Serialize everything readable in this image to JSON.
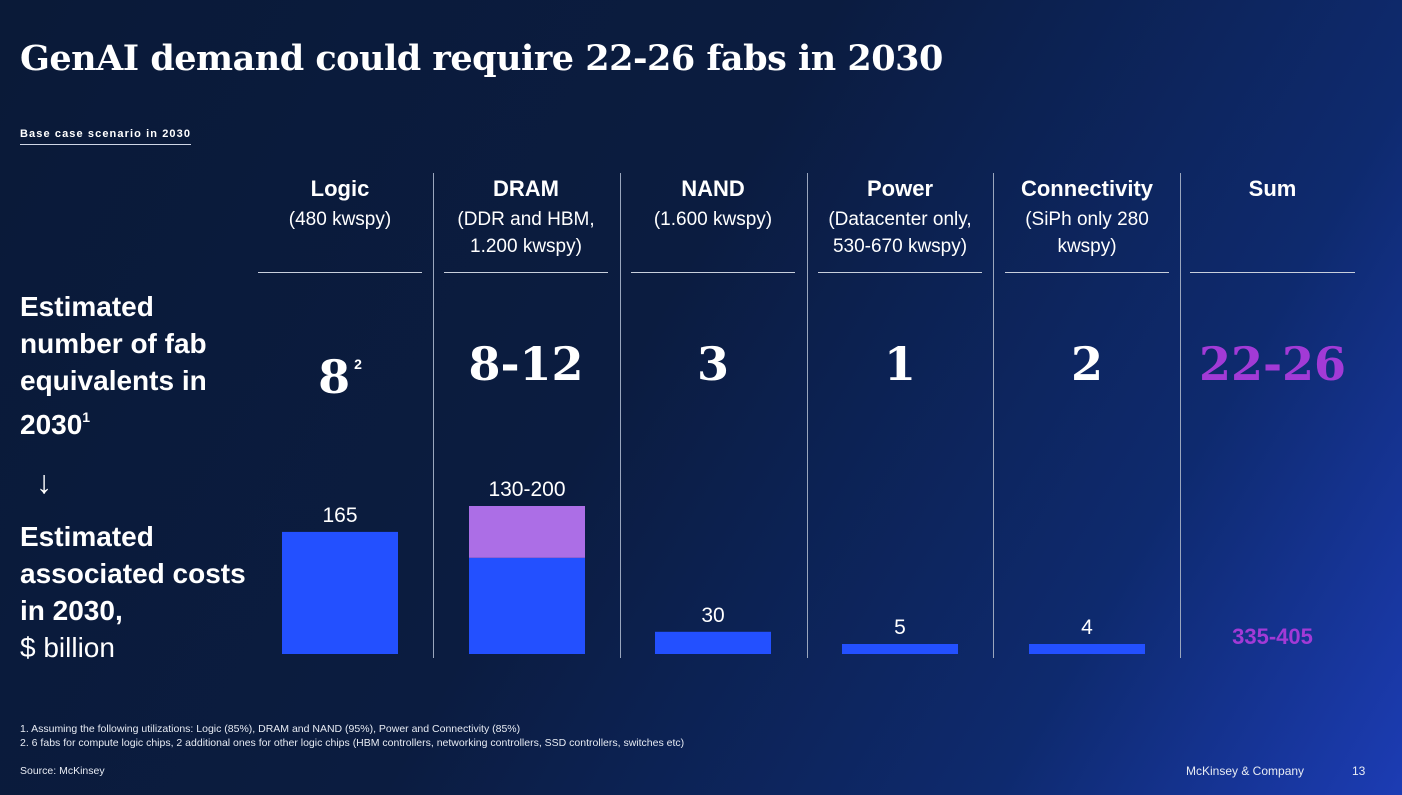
{
  "title": "GenAI demand could require 22-26 fabs in 2030",
  "subtitle": "Base case scenario in 2030",
  "row_labels": {
    "fabs_text": "Estimated number of fab equivalents in 2030",
    "fabs_footnote": "1",
    "arrow": "↓",
    "costs_bold": "Estimated associated costs in 2030,",
    "costs_unit": "$ billion"
  },
  "columns": [
    {
      "name": "Logic",
      "detail_1": "(480 kwspy)",
      "detail_2": "",
      "fabs": "8",
      "fabs_footnote": "2"
    },
    {
      "name": "DRAM",
      "detail_1": "(DDR and HBM,",
      "detail_2": "1.200 kwspy)",
      "fabs": "8-12",
      "fabs_footnote": ""
    },
    {
      "name": "NAND",
      "detail_1": "(1.600 kwspy)",
      "detail_2": "",
      "fabs": "3",
      "fabs_footnote": ""
    },
    {
      "name": "Power",
      "detail_1": "(Datacenter only,",
      "detail_2": "530-670 kwspy)",
      "fabs": "1",
      "fabs_footnote": ""
    },
    {
      "name": "Connectivity",
      "detail_1": "(SiPh only 280",
      "detail_2": "kwspy)",
      "fabs": "2",
      "fabs_footnote": ""
    },
    {
      "name": "Sum",
      "detail_1": "",
      "detail_2": "",
      "fabs": "22-26",
      "fabs_footnote": ""
    }
  ],
  "sum_cost_label": "335-405",
  "colors": {
    "bar_base": "#2350ff",
    "bar_range": "#ac6ee6",
    "accent_sum": "#a23ad6"
  },
  "chart_data": {
    "type": "bar",
    "stacked": true,
    "categories": [
      "Logic",
      "DRAM",
      "NAND",
      "Power",
      "Connectivity"
    ],
    "series": [
      {
        "values": [
          165,
          130,
          30,
          5,
          4
        ]
      },
      {
        "values": [
          0,
          70,
          0,
          0,
          0
        ]
      }
    ],
    "data_labels": [
      "165",
      "130-200",
      "30",
      "5",
      "4"
    ],
    "ylim": [
      0,
      200
    ],
    "grid": false,
    "legend": "none"
  },
  "footnotes": [
    "1.    Assuming the following utilizations: Logic (85%), DRAM and NAND (95%), Power and Connectivity (85%)",
    "2.    6 fabs for compute logic chips, 2 additional ones for other logic chips (HBM controllers, networking controllers, SSD controllers, switches etc)"
  ],
  "source": "Source: McKinsey",
  "brand": "McKinsey & Company",
  "page_number": "13"
}
